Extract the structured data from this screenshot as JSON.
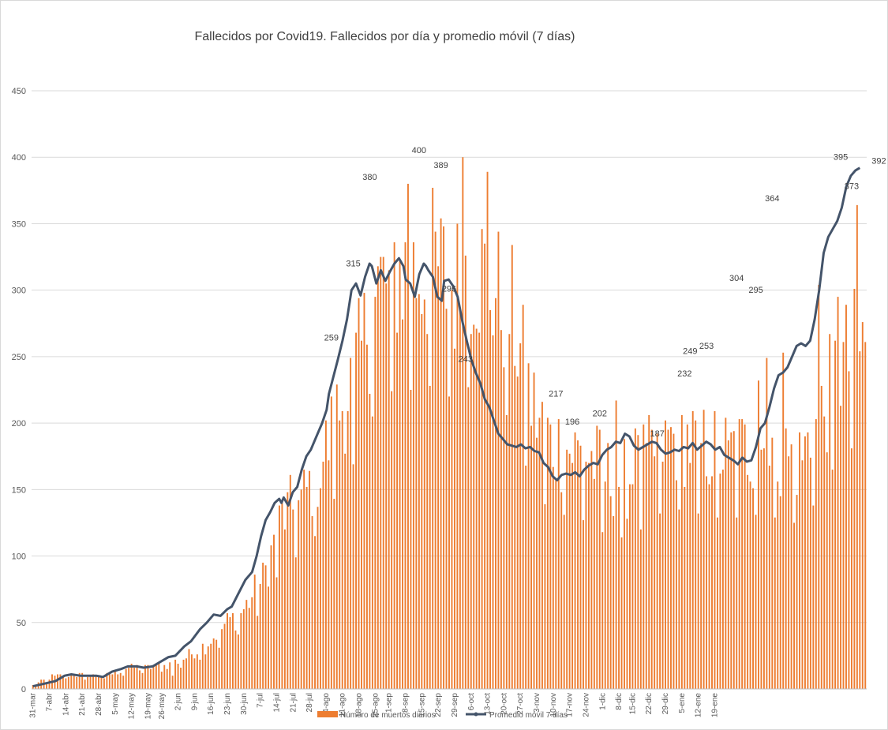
{
  "chart_data": {
    "type": "bar+line",
    "title": "Fallecidos por Covid19. Fallecidos por día y promedio móvil (7 días)",
    "ylim": [
      0,
      450
    ],
    "yticks": [
      0,
      50,
      100,
      150,
      200,
      250,
      300,
      350,
      400,
      450
    ],
    "start_date": "31-mar",
    "n_days": 305,
    "x_tick_labels": [
      "31-mar",
      "7-abr",
      "14-abr",
      "21-abr",
      "28-abr",
      "5-may",
      "12-may",
      "19-may",
      "26-may",
      "2-jun",
      "9-jun",
      "16-jun",
      "23-jun",
      "30-jun",
      "7-jul",
      "14-jul",
      "21-jul",
      "28-jul",
      "4-ago",
      "11-ago",
      "18-ago",
      "25-ago",
      "1-sep",
      "8-sep",
      "15-sep",
      "22-sep",
      "29-sep",
      "6-oct",
      "13-oct",
      "20-oct",
      "27-oct",
      "3-nov",
      "10-nov",
      "17-nov",
      "24-nov",
      "1-dic",
      "8-dic",
      "15-dic",
      "22-dic",
      "29-dic",
      "5-ene",
      "12-ene",
      "19-ene"
    ],
    "series": [
      {
        "name": "Número de muertos diarios",
        "type": "bar",
        "color": "#ED7D31",
        "anchors": [
          [
            0,
            2
          ],
          [
            7,
            9
          ],
          [
            14,
            11
          ],
          [
            21,
            10
          ],
          [
            28,
            11
          ],
          [
            35,
            16
          ],
          [
            42,
            16
          ],
          [
            49,
            18
          ],
          [
            56,
            24
          ],
          [
            63,
            33
          ],
          [
            70,
            48
          ],
          [
            77,
            60
          ],
          [
            84,
            82
          ],
          [
            91,
            130
          ],
          [
            98,
            140
          ],
          [
            105,
            168
          ],
          [
            112,
            210
          ],
          [
            119,
            245
          ],
          [
            126,
            300
          ],
          [
            133,
            315
          ],
          [
            140,
            312
          ],
          [
            147,
            318
          ],
          [
            154,
            300
          ],
          [
            161,
            322
          ],
          [
            168,
            300
          ],
          [
            175,
            280
          ],
          [
            182,
            215
          ],
          [
            189,
            185
          ],
          [
            196,
            180
          ],
          [
            203,
            175
          ],
          [
            210,
            160
          ],
          [
            217,
            158
          ],
          [
            224,
            170
          ],
          [
            231,
            188
          ],
          [
            238,
            188
          ],
          [
            245,
            182
          ],
          [
            252,
            178
          ],
          [
            259,
            180
          ],
          [
            266,
            182
          ],
          [
            273,
            178
          ],
          [
            280,
            172
          ],
          [
            287,
            200
          ],
          [
            294,
            240
          ],
          [
            301,
            255
          ],
          [
            308,
            262
          ],
          [
            315,
            300
          ],
          [
            322,
            345
          ],
          [
            329,
            370
          ],
          [
            336,
            390
          ],
          [
            340,
            378
          ]
        ],
        "peaks": [
          [
            51,
            10
          ],
          [
            122,
            259
          ],
          [
            130,
            315
          ],
          [
            137,
            380
          ],
          [
            157,
            400
          ],
          [
            166,
            389
          ],
          [
            176,
            243
          ],
          [
            213,
            217
          ],
          [
            220,
            196
          ],
          [
            231,
            202
          ],
          [
            254,
            187
          ],
          [
            265,
            232
          ],
          [
            268,
            249
          ],
          [
            274,
            253
          ],
          [
            287,
            304
          ],
          [
            294,
            295
          ],
          [
            301,
            364
          ],
          [
            329,
            395
          ],
          [
            333,
            373
          ]
        ]
      },
      {
        "name": "Promedio móvil 7 días",
        "type": "line",
        "color": "#44546A",
        "points": [
          [
            0,
            2
          ],
          [
            5,
            4
          ],
          [
            10,
            6
          ],
          [
            14,
            10
          ],
          [
            17,
            11
          ],
          [
            21,
            10
          ],
          [
            25,
            10
          ],
          [
            28,
            10
          ],
          [
            31,
            9
          ],
          [
            35,
            13
          ],
          [
            39,
            15
          ],
          [
            42,
            17
          ],
          [
            46,
            17
          ],
          [
            49,
            16
          ],
          [
            53,
            17
          ],
          [
            56,
            20
          ],
          [
            60,
            24
          ],
          [
            63,
            25
          ],
          [
            67,
            32
          ],
          [
            70,
            36
          ],
          [
            74,
            45
          ],
          [
            77,
            50
          ],
          [
            80,
            56
          ],
          [
            83,
            55
          ],
          [
            86,
            60
          ],
          [
            88,
            62
          ],
          [
            91,
            72
          ],
          [
            94,
            82
          ],
          [
            97,
            88
          ],
          [
            99,
            100
          ],
          [
            101,
            115
          ],
          [
            103,
            127
          ],
          [
            105,
            133
          ],
          [
            107,
            140
          ],
          [
            109,
            143
          ],
          [
            110,
            140
          ],
          [
            111,
            144
          ],
          [
            113,
            138
          ],
          [
            115,
            148
          ],
          [
            117,
            152
          ],
          [
            119,
            165
          ],
          [
            121,
            175
          ],
          [
            123,
            180
          ],
          [
            125,
            188
          ],
          [
            128,
            200
          ],
          [
            130,
            210
          ],
          [
            131,
            222
          ],
          [
            133,
            235
          ],
          [
            135,
            248
          ],
          [
            137,
            262
          ],
          [
            139,
            278
          ],
          [
            141,
            300
          ],
          [
            143,
            305
          ],
          [
            145,
            296
          ],
          [
            147,
            310
          ],
          [
            149,
            320
          ],
          [
            150,
            318
          ],
          [
            152,
            305
          ],
          [
            154,
            315
          ],
          [
            156,
            307
          ],
          [
            158,
            314
          ],
          [
            160,
            320
          ],
          [
            162,
            324
          ],
          [
            164,
            318
          ],
          [
            165,
            308
          ],
          [
            167,
            305
          ],
          [
            169,
            295
          ],
          [
            171,
            312
          ],
          [
            173,
            320
          ],
          [
            174,
            318
          ],
          [
            175,
            315
          ],
          [
            177,
            310
          ],
          [
            179,
            295
          ],
          [
            181,
            292
          ],
          [
            182,
            307
          ],
          [
            184,
            308
          ],
          [
            186,
            303
          ],
          [
            188,
            295
          ],
          [
            190,
            277
          ],
          [
            192,
            262
          ],
          [
            194,
            248
          ],
          [
            196,
            238
          ],
          [
            198,
            230
          ],
          [
            200,
            218
          ],
          [
            202,
            212
          ],
          [
            204,
            202
          ],
          [
            206,
            192
          ],
          [
            208,
            188
          ],
          [
            210,
            184
          ],
          [
            212,
            183
          ],
          [
            214,
            182
          ],
          [
            216,
            184
          ],
          [
            218,
            181
          ],
          [
            220,
            182
          ],
          [
            222,
            179
          ],
          [
            224,
            178
          ],
          [
            226,
            170
          ],
          [
            228,
            167
          ],
          [
            230,
            160
          ],
          [
            232,
            157
          ],
          [
            234,
            161
          ],
          [
            236,
            162
          ],
          [
            238,
            161
          ],
          [
            240,
            163
          ],
          [
            242,
            160
          ],
          [
            244,
            165
          ],
          [
            246,
            168
          ],
          [
            248,
            170
          ],
          [
            250,
            169
          ],
          [
            252,
            176
          ],
          [
            254,
            180
          ],
          [
            256,
            182
          ],
          [
            258,
            186
          ],
          [
            260,
            185
          ],
          [
            262,
            192
          ],
          [
            264,
            190
          ],
          [
            266,
            183
          ],
          [
            268,
            180
          ],
          [
            270,
            182
          ],
          [
            272,
            184
          ],
          [
            274,
            186
          ],
          [
            276,
            185
          ],
          [
            278,
            180
          ],
          [
            280,
            177
          ],
          [
            282,
            178
          ],
          [
            284,
            180
          ],
          [
            286,
            179
          ],
          [
            288,
            182
          ],
          [
            290,
            181
          ],
          [
            292,
            185
          ],
          [
            294,
            180
          ],
          [
            296,
            183
          ],
          [
            298,
            186
          ],
          [
            300,
            184
          ],
          [
            302,
            180
          ],
          [
            304,
            182
          ],
          [
            306,
            176
          ],
          [
            308,
            174
          ],
          [
            310,
            172
          ],
          [
            312,
            169
          ],
          [
            314,
            174
          ],
          [
            316,
            171
          ],
          [
            318,
            172
          ],
          [
            320,
            182
          ],
          [
            322,
            196
          ],
          [
            324,
            200
          ],
          [
            326,
            212
          ],
          [
            328,
            226
          ],
          [
            330,
            236
          ],
          [
            332,
            238
          ],
          [
            334,
            242
          ],
          [
            336,
            250
          ],
          [
            338,
            258
          ],
          [
            340,
            260
          ],
          [
            342,
            258
          ],
          [
            344,
            262
          ],
          [
            346,
            278
          ],
          [
            348,
            300
          ],
          [
            350,
            328
          ],
          [
            352,
            340
          ],
          [
            354,
            346
          ],
          [
            356,
            352
          ],
          [
            358,
            362
          ],
          [
            360,
            378
          ],
          [
            362,
            386
          ],
          [
            364,
            390
          ],
          [
            366,
            392
          ]
        ]
      }
    ],
    "data_labels": [
      {
        "i": 122,
        "v": 259,
        "text": "259"
      },
      {
        "i": 130,
        "v": 315,
        "text": "315"
      },
      {
        "i": 137,
        "v": 380,
        "text": "380"
      },
      {
        "i": 157,
        "v": 400,
        "text": "400"
      },
      {
        "i": 166,
        "v": 389,
        "text": "389"
      },
      {
        "i": 169,
        "v": 296,
        "text": "296"
      },
      {
        "i": 176,
        "v": 243,
        "text": "243"
      },
      {
        "i": 213,
        "v": 217,
        "text": "217"
      },
      {
        "i": 220,
        "v": 196,
        "text": "196"
      },
      {
        "i": 231,
        "v": 202,
        "text": "202"
      },
      {
        "i": 254,
        "v": 187,
        "text": "187"
      },
      {
        "i": 265,
        "v": 232,
        "text": "232"
      },
      {
        "i": 268,
        "v": 249,
        "text": "249"
      },
      {
        "i": 274,
        "v": 253,
        "text": "253"
      },
      {
        "i": 287,
        "v": 304,
        "text": "304"
      },
      {
        "i": 294,
        "v": 295,
        "text": "295"
      },
      {
        "i": 301,
        "v": 364,
        "text": "364"
      },
      {
        "i": 329,
        "v": 395,
        "text": "395"
      },
      {
        "i": 333,
        "v": 373,
        "text": "373"
      },
      {
        "i": 337,
        "v": 392,
        "text": "392"
      }
    ],
    "legend": {
      "position": "bottom",
      "bar_label": "Número de muertos diarios",
      "line_label": "Promedio móvil 7 días"
    }
  }
}
